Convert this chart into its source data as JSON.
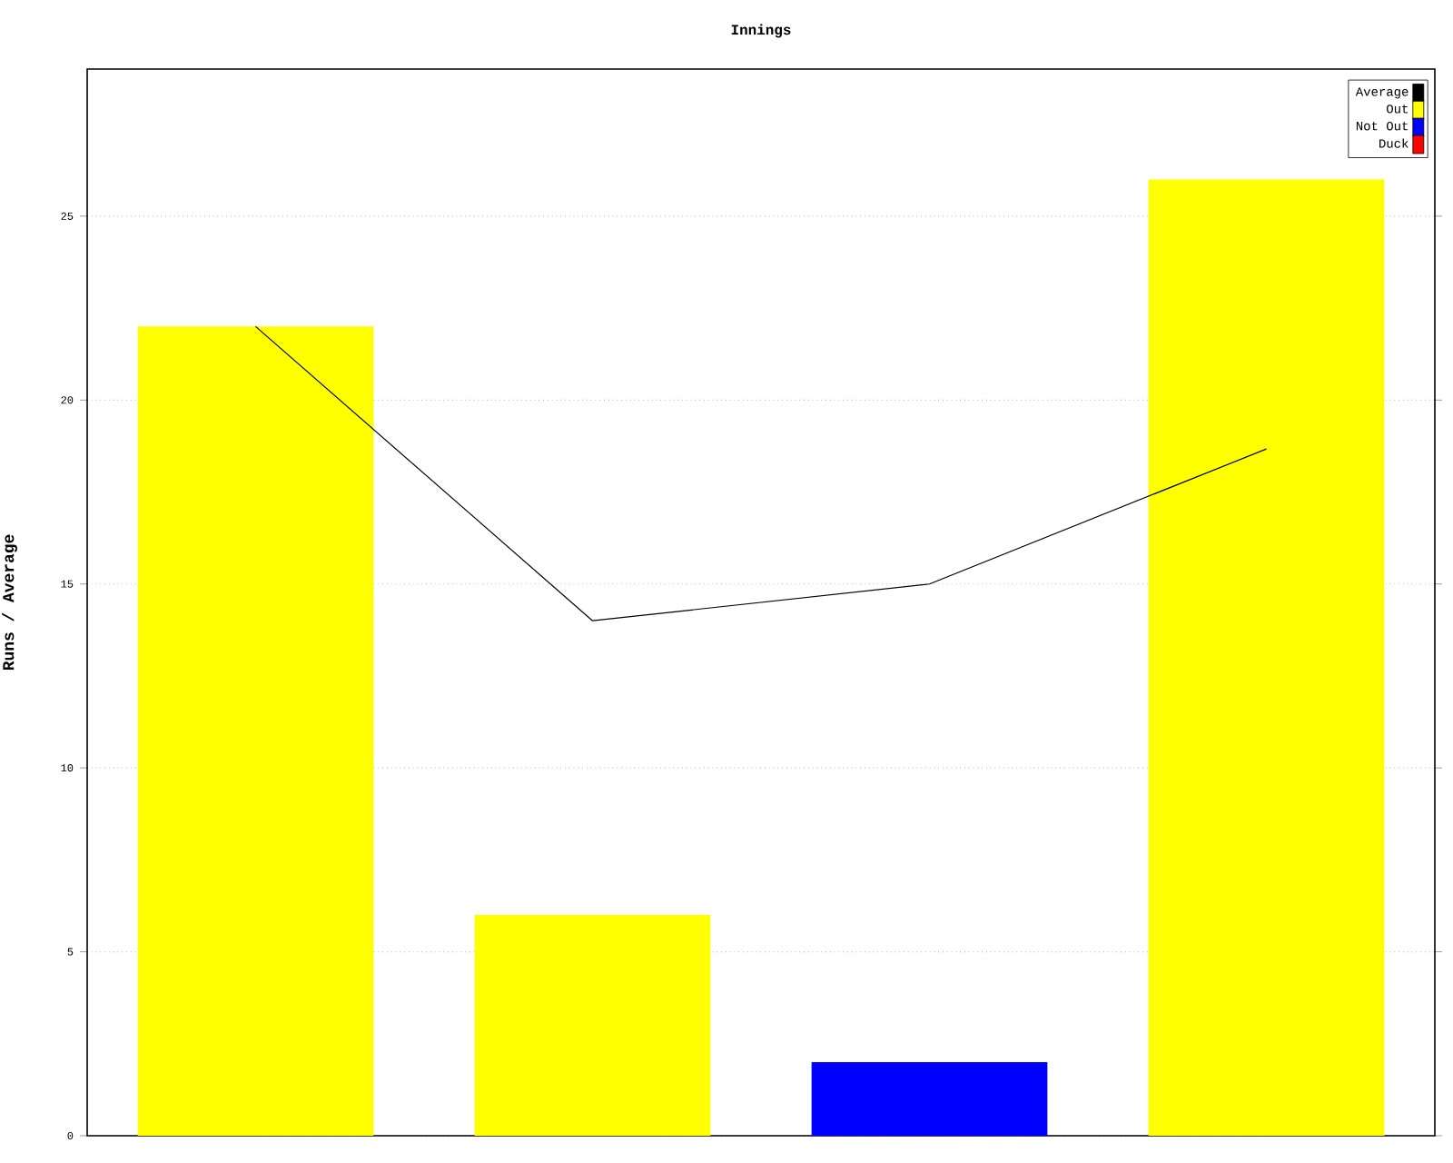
{
  "chart_data": {
    "type": "bar",
    "title": "Innings",
    "ylabel": "Runs / Average",
    "categories": [
      null,
      null,
      null,
      null
    ],
    "series": [
      {
        "name": "Average",
        "type": "line",
        "color": "#000000",
        "values": [
          22,
          14,
          15,
          18.67
        ]
      },
      {
        "name": "Out",
        "color": "#ffff00",
        "values": [
          22,
          6,
          null,
          26
        ]
      },
      {
        "name": "Not Out",
        "color": "#0000ff",
        "values": [
          null,
          null,
          2,
          null
        ]
      },
      {
        "name": "Duck",
        "color": "#ff0000",
        "values": [
          null,
          null,
          null,
          null
        ]
      }
    ],
    "ylim": [
      0,
      29
    ],
    "yticks": [
      0,
      5,
      10,
      15,
      20,
      25
    ],
    "grid": "y",
    "legend": "top right",
    "marker": "none"
  }
}
